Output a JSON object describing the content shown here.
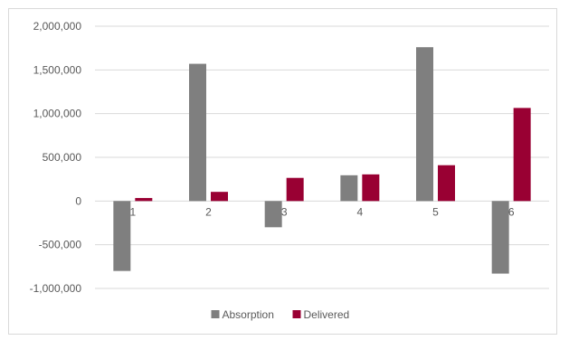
{
  "chart_data": {
    "type": "bar",
    "categories": [
      "1",
      "2",
      "3",
      "4",
      "5",
      "6"
    ],
    "series": [
      {
        "name": "Absorption",
        "values": [
          -800000,
          1570000,
          -300000,
          295000,
          1760000,
          -830000
        ]
      },
      {
        "name": "Delivered",
        "values": [
          35000,
          105000,
          265000,
          305000,
          410000,
          1065000
        ]
      }
    ],
    "colors": {
      "Absorption": "#7f7f7f",
      "Delivered": "#990033",
      "grid": "#d9d9d9",
      "text": "#595959"
    },
    "ylim": [
      -1000000,
      2000000
    ],
    "ytick_step": 500000,
    "yticks": [
      "2,000,000",
      "1,500,000",
      "1,000,000",
      "500,000",
      "0",
      "-500,000",
      "-1,000,000"
    ],
    "grid": true,
    "legend_position": "bottom",
    "title": "",
    "xlabel": "",
    "ylabel": ""
  }
}
